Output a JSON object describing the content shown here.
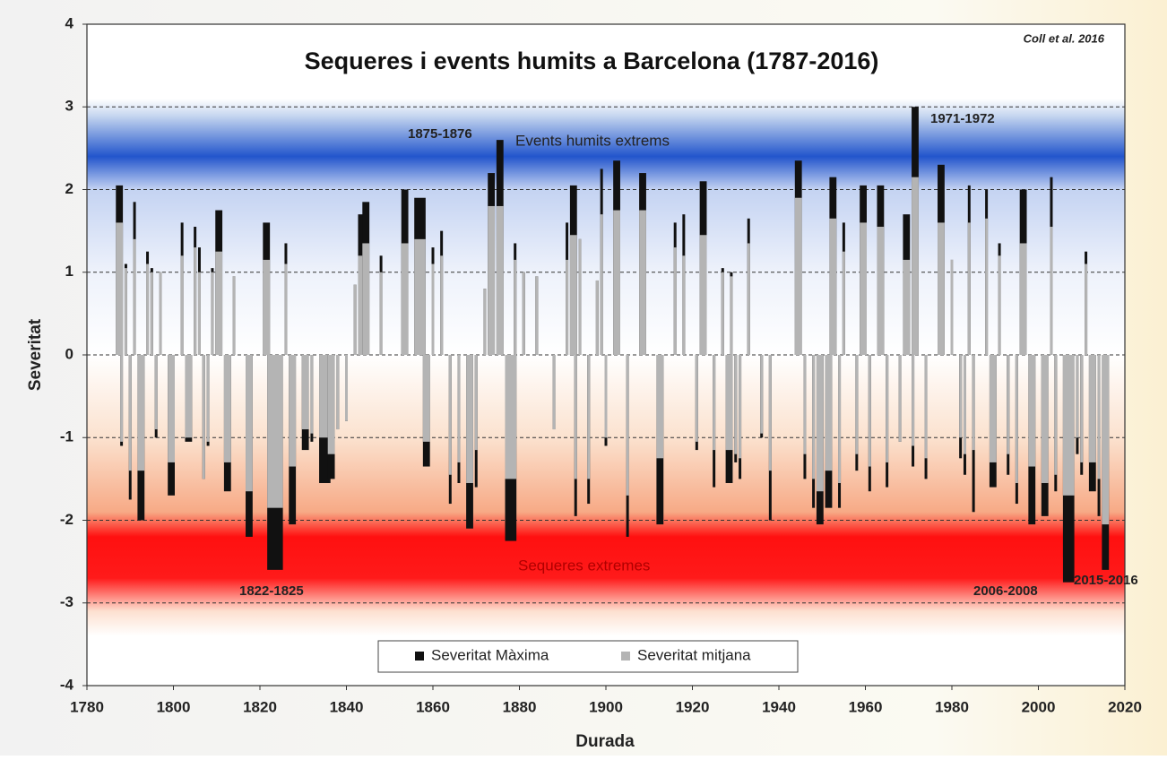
{
  "chart_data": {
    "type": "bar",
    "title": "Sequeres i events humits a Barcelona (1787-2016)",
    "source": "Coll et al. 2016",
    "x_label": "Durada",
    "y_label": "Severitat",
    "xlim": [
      1780,
      2020
    ],
    "xticks": [
      1780,
      1800,
      1820,
      1840,
      1860,
      1880,
      1900,
      1920,
      1940,
      1960,
      1980,
      2000,
      2020
    ],
    "ylim": [
      -4,
      4
    ],
    "yticks": [
      4,
      3,
      2,
      1,
      0,
      -1,
      -2,
      -3,
      -4
    ],
    "grid": true,
    "legend": "bottom center",
    "bands": [
      {
        "label": "Events humits extrems",
        "range": [
          2,
          3
        ],
        "color": "#2255cc"
      },
      {
        "label": "Sequeres extremes",
        "range": [
          -3,
          -2
        ],
        "color": "#ff1010"
      }
    ],
    "annotations": [
      "1875-1876",
      "1971-1972",
      "1822-1825",
      "2006-2008",
      "2015-2016"
    ],
    "x": [
      1787,
      1788,
      1789,
      1790,
      1791,
      1792,
      1794,
      1795,
      1796,
      1797,
      1799,
      1802,
      1803,
      1805,
      1806,
      1807,
      1808,
      1809,
      1810,
      1812,
      1814,
      1817,
      1821,
      1822,
      1826,
      1827,
      1830,
      1832,
      1834,
      1836,
      1838,
      1840,
      1842,
      1843,
      1844,
      1848,
      1853,
      1856,
      1858,
      1860,
      1862,
      1864,
      1866,
      1868,
      1870,
      1872,
      1873,
      1875,
      1877,
      1879,
      1881,
      1884,
      1888,
      1891,
      1892,
      1893,
      1894,
      1896,
      1898,
      1899,
      1900,
      1902,
      1905,
      1908,
      1912,
      1916,
      1918,
      1921,
      1922,
      1925,
      1927,
      1928,
      1929,
      1930,
      1931,
      1933,
      1936,
      1938,
      1944,
      1946,
      1948,
      1949,
      1951,
      1952,
      1954,
      1955,
      1958,
      1959,
      1961,
      1963,
      1965,
      1968,
      1969,
      1971,
      1971,
      1974,
      1977,
      1980,
      1982,
      1983,
      1984,
      1985,
      1988,
      1989,
      1991,
      1993,
      1995,
      1996,
      1998,
      2001,
      2003,
      2004,
      2006,
      2006,
      2009,
      2010,
      2011,
      2012,
      2014,
      2015
    ],
    "x_end": [
      1788,
      1788,
      1789,
      1790,
      1791,
      1793,
      1794,
      1795,
      1796,
      1797,
      1800,
      1802,
      1804,
      1805,
      1806,
      1807,
      1808,
      1809,
      1811,
      1813,
      1814,
      1818,
      1822,
      1825,
      1826,
      1828,
      1831,
      1832,
      1836,
      1837,
      1838,
      1840,
      1842,
      1844,
      1845,
      1848,
      1854,
      1858,
      1859,
      1860,
      1862,
      1864,
      1866,
      1869,
      1870,
      1872,
      1874,
      1876,
      1879,
      1879,
      1881,
      1884,
      1888,
      1891,
      1893,
      1893,
      1894,
      1896,
      1898,
      1899,
      1900,
      1903,
      1905,
      1909,
      1913,
      1916,
      1918,
      1921,
      1923,
      1925,
      1927,
      1929,
      1929,
      1930,
      1931,
      1933,
      1936,
      1938,
      1945,
      1946,
      1948,
      1950,
      1952,
      1953,
      1954,
      1955,
      1958,
      1960,
      1961,
      1964,
      1965,
      1968,
      1970,
      1971,
      1972,
      1974,
      1978,
      1980,
      1982,
      1983,
      1984,
      1985,
      1988,
      1990,
      1991,
      1993,
      1995,
      1997,
      1999,
      2002,
      2003,
      2004,
      2006,
      2008,
      2009,
      2010,
      2011,
      2013,
      2014,
      2016
    ],
    "series": [
      {
        "name": "Severitat Màxima",
        "color": "#111111",
        "values": [
          2.05,
          -1.1,
          1.1,
          -1.75,
          1.85,
          -2.0,
          1.25,
          1.05,
          -1.0,
          1.0,
          -1.7,
          1.6,
          -1.05,
          1.55,
          1.3,
          -1.5,
          -1.1,
          1.05,
          1.75,
          -1.65,
          0.95,
          -2.2,
          1.6,
          -2.6,
          1.35,
          -2.05,
          -1.15,
          -1.05,
          -1.55,
          -1.5,
          -0.9,
          -0.8,
          0.85,
          1.7,
          1.85,
          1.2,
          2.0,
          1.9,
          -1.35,
          1.3,
          1.5,
          -1.8,
          -1.55,
          -2.1,
          -1.6,
          0.8,
          2.2,
          2.6,
          -2.25,
          1.35,
          1.0,
          0.95,
          -0.9,
          1.6,
          2.05,
          -1.95,
          1.4,
          -1.8,
          0.9,
          2.25,
          -1.1,
          2.35,
          -2.2,
          2.2,
          -2.05,
          1.6,
          1.7,
          -1.15,
          2.1,
          -1.6,
          1.05,
          -1.55,
          1.0,
          -1.3,
          -1.5,
          1.65,
          -1.0,
          -2.0,
          2.35,
          -1.5,
          -1.85,
          -2.05,
          -1.85,
          2.15,
          -1.85,
          1.6,
          -1.4,
          2.05,
          -1.65,
          2.05,
          -1.6,
          -1.05,
          1.7,
          -1.35,
          3.0,
          -1.5,
          2.3,
          1.15,
          -1.25,
          -1.45,
          2.05,
          -1.9,
          2.0,
          -1.6,
          1.35,
          -1.45,
          -1.8,
          2.0,
          -2.05,
          -1.95,
          2.15,
          -1.65,
          -2.45,
          -2.75,
          -1.2,
          -1.45,
          1.25,
          -1.65,
          -1.95,
          -2.6
        ]
      },
      {
        "name": "Severitat mitjana",
        "color": "#b4b4b4",
        "values": [
          1.6,
          -1.05,
          1.05,
          -1.4,
          1.4,
          -1.4,
          1.1,
          1.0,
          -0.9,
          1.0,
          -1.3,
          1.2,
          -1.0,
          1.3,
          1.0,
          -1.5,
          -1.05,
          1.0,
          1.25,
          -1.3,
          0.95,
          -1.65,
          1.15,
          -1.85,
          1.1,
          -1.35,
          -0.9,
          -0.95,
          -1.0,
          -1.2,
          -0.9,
          -0.8,
          0.85,
          1.2,
          1.35,
          1.0,
          1.35,
          1.4,
          -1.05,
          1.1,
          1.2,
          -1.45,
          -1.3,
          -1.55,
          -1.15,
          0.8,
          1.8,
          1.8,
          -1.5,
          1.15,
          1.0,
          0.95,
          -0.9,
          1.15,
          1.45,
          -1.5,
          1.4,
          -1.5,
          0.9,
          1.7,
          -1.0,
          1.75,
          -1.7,
          1.75,
          -1.25,
          1.3,
          1.2,
          -1.05,
          1.45,
          -1.15,
          1.0,
          -1.15,
          0.95,
          -1.2,
          -1.25,
          1.35,
          -0.95,
          -1.4,
          1.9,
          -1.2,
          -1.5,
          -1.65,
          -1.4,
          1.65,
          -1.55,
          1.25,
          -1.2,
          1.6,
          -1.35,
          1.55,
          -1.3,
          -1.05,
          1.15,
          -1.1,
          2.15,
          -1.25,
          1.6,
          1.15,
          -1.0,
          -1.2,
          1.6,
          -1.15,
          1.65,
          -1.3,
          1.2,
          -1.2,
          -1.55,
          1.35,
          -1.35,
          -1.55,
          1.55,
          -1.45,
          -1.85,
          -1.7,
          -1.0,
          -1.3,
          1.1,
          -1.3,
          -1.5,
          -2.05
        ]
      }
    ]
  }
}
